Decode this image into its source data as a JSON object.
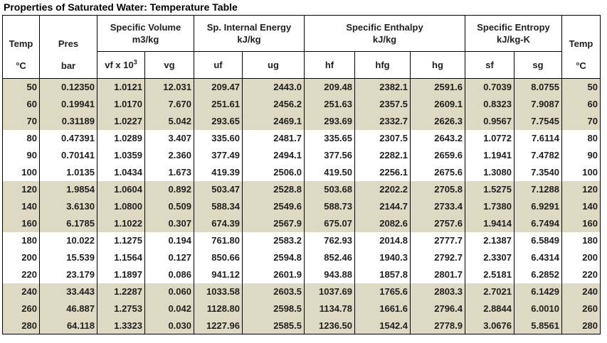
{
  "title": "Properties of Saturated Water: Temperature Table",
  "colors": {
    "band_fill": "#ddd9c3",
    "border": "#000000",
    "text": "#1f1f1f",
    "background": "#ffffff"
  },
  "table": {
    "header": {
      "temp_left": {
        "line1": "Temp",
        "line2": "°C"
      },
      "pres": {
        "line1": "Pres",
        "line2": "bar"
      },
      "temp_right": {
        "line1": "Temp",
        "line2": "°C"
      },
      "groups": [
        {
          "title": "Specific Volume",
          "unit": "m3/kg"
        },
        {
          "title": "Sp. Internal Energy",
          "unit": "kJ/kg"
        },
        {
          "title": "Specific Enthalpy",
          "unit": "kJ/kg"
        },
        {
          "title": "Specific Entropy",
          "unit": "kJ/kg-K"
        }
      ],
      "sub": [
        {
          "base": "vf x 10",
          "sup": "3"
        },
        {
          "base": "vg",
          "sup": ""
        },
        {
          "base": "uf",
          "sup": ""
        },
        {
          "base": "ug",
          "sup": ""
        },
        {
          "base": "hf",
          "sup": ""
        },
        {
          "base": "hfg",
          "sup": ""
        },
        {
          "base": "hg",
          "sup": ""
        },
        {
          "base": "sf",
          "sup": ""
        },
        {
          "base": "sg",
          "sup": ""
        }
      ]
    },
    "col_keys": [
      "temp",
      "pres",
      "vf",
      "vg",
      "uf",
      "ug",
      "hf",
      "hfg",
      "hg",
      "sf",
      "sg",
      "temp-right"
    ],
    "rows": [
      [
        "50",
        "0.12350",
        "1.0121",
        "12.031",
        "209.47",
        "2443.0",
        "209.48",
        "2382.1",
        "2591.6",
        "0.7039",
        "8.0755",
        "50"
      ],
      [
        "60",
        "0.19941",
        "1.0170",
        "7.670",
        "251.61",
        "2456.2",
        "251.63",
        "2357.5",
        "2609.1",
        "0.8323",
        "7.9087",
        "60"
      ],
      [
        "70",
        "0.31189",
        "1.0227",
        "5.042",
        "293.65",
        "2469.1",
        "293.69",
        "2332.7",
        "2626.3",
        "0.9567",
        "7.7545",
        "70"
      ],
      [
        "80",
        "0.47391",
        "1.0289",
        "3.407",
        "335.60",
        "2481.7",
        "335.65",
        "2307.5",
        "2643.2",
        "1.0772",
        "7.6114",
        "80"
      ],
      [
        "90",
        "0.70141",
        "1.0359",
        "2.360",
        "377.49",
        "2494.1",
        "377.56",
        "2282.1",
        "2659.6",
        "1.1941",
        "7.4782",
        "90"
      ],
      [
        "100",
        "1.0135",
        "1.0434",
        "1.673",
        "419.39",
        "2506.0",
        "419.50",
        "2256.1",
        "2675.6",
        "1.3080",
        "7.3540",
        "100"
      ],
      [
        "120",
        "1.9854",
        "1.0604",
        "0.892",
        "503.47",
        "2528.8",
        "503.68",
        "2202.2",
        "2705.8",
        "1.5275",
        "7.1288",
        "120"
      ],
      [
        "140",
        "3.6130",
        "1.0800",
        "0.509",
        "588.34",
        "2549.6",
        "588.73",
        "2144.7",
        "2733.4",
        "1.7380",
        "6.9291",
        "140"
      ],
      [
        "160",
        "6.1785",
        "1.1022",
        "0.307",
        "674.39",
        "2567.9",
        "675.07",
        "2082.6",
        "2757.6",
        "1.9414",
        "6.7494",
        "160"
      ],
      [
        "180",
        "10.022",
        "1.1275",
        "0.194",
        "761.80",
        "2583.2",
        "762.93",
        "2014.8",
        "2777.7",
        "2.1387",
        "6.5849",
        "180"
      ],
      [
        "200",
        "15.539",
        "1.1564",
        "0.127",
        "850.66",
        "2594.8",
        "852.46",
        "1940.3",
        "2792.7",
        "2.3307",
        "6.4314",
        "200"
      ],
      [
        "220",
        "23.179",
        "1.1897",
        "0.086",
        "941.12",
        "2601.9",
        "943.88",
        "1857.8",
        "2801.7",
        "2.5181",
        "6.2852",
        "220"
      ],
      [
        "240",
        "33.443",
        "1.2287",
        "0.060",
        "1033.58",
        "2603.5",
        "1037.69",
        "1765.6",
        "2803.3",
        "2.7021",
        "6.1429",
        "240"
      ],
      [
        "260",
        "46.887",
        "1.2753",
        "0.042",
        "1128.80",
        "2598.5",
        "1134.78",
        "1661.6",
        "2796.4",
        "2.8844",
        "6.0010",
        "260"
      ],
      [
        "280",
        "64.118",
        "1.3323",
        "0.030",
        "1227.96",
        "2585.5",
        "1236.50",
        "1542.4",
        "2778.9",
        "3.0676",
        "5.8561",
        "280"
      ]
    ]
  }
}
